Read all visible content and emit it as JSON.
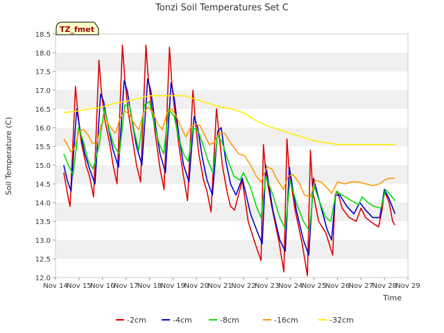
{
  "chart_data": {
    "type": "line",
    "title": "Tonzi Soil Temperatures Set C",
    "xlabel": "Time",
    "ylabel": "Soil Temperature (C)",
    "badge": "TZ_fmet",
    "xlim": [
      14,
      29
    ],
    "ylim": [
      12.0,
      18.5
    ],
    "x_ticks": [
      14,
      15,
      16,
      17,
      18,
      19,
      20,
      21,
      22,
      23,
      24,
      25,
      26,
      27,
      28,
      29
    ],
    "x_tick_labels": [
      "Nov 14",
      "Nov 15",
      "Nov 16",
      "Nov 17",
      "Nov 18",
      "Nov 19",
      "Nov 20",
      "Nov 21",
      "Nov 22",
      "Nov 23",
      "Nov 24",
      "Nov 25",
      "Nov 26",
      "Nov 27",
      "Nov 28",
      "Nov 29"
    ],
    "y_ticks": [
      12.0,
      12.5,
      13.0,
      13.5,
      14.0,
      14.5,
      15.0,
      15.5,
      16.0,
      16.5,
      17.0,
      17.5,
      18.0,
      18.5
    ],
    "y_tick_labels": [
      "12.0",
      "12.5",
      "13.0",
      "13.5",
      "14.0",
      "14.5",
      "15.0",
      "15.5",
      "16.0",
      "16.5",
      "17.0",
      "17.5",
      "18.0",
      "18.5"
    ],
    "grid": "horizontal bands",
    "legend_position": "bottom",
    "series": [
      {
        "name": "-2cm",
        "color": "#dd0000",
        "x": [
          14.35,
          14.55,
          14.62,
          14.85,
          14.95,
          15.1,
          15.3,
          15.45,
          15.62,
          15.85,
          15.95,
          16.1,
          16.3,
          16.45,
          16.62,
          16.85,
          16.95,
          17.1,
          17.3,
          17.45,
          17.62,
          17.85,
          17.95,
          18.1,
          18.3,
          18.45,
          18.62,
          18.85,
          18.95,
          19.1,
          19.3,
          19.45,
          19.62,
          19.85,
          19.95,
          20.1,
          20.3,
          20.45,
          20.62,
          20.85,
          20.95,
          21.1,
          21.3,
          21.45,
          21.62,
          21.85,
          21.95,
          22.2,
          22.5,
          22.75,
          22.85,
          22.95,
          23.2,
          23.5,
          23.72,
          23.85,
          23.95,
          24.2,
          24.5,
          24.72,
          24.85,
          24.95,
          25.2,
          25.5,
          25.8,
          25.9,
          26.0,
          26.2,
          26.5,
          26.8,
          27.0,
          27.2,
          27.5,
          27.75,
          27.9,
          28.0,
          28.2,
          28.35,
          28.45
        ],
        "values": [
          14.8,
          14.1,
          13.9,
          17.1,
          16.4,
          15.6,
          15.0,
          14.7,
          14.15,
          17.8,
          17.0,
          16.2,
          15.6,
          15.0,
          14.5,
          18.2,
          17.3,
          16.4,
          15.6,
          15.0,
          14.55,
          18.2,
          17.3,
          16.5,
          15.6,
          14.9,
          14.35,
          18.15,
          17.2,
          16.3,
          15.3,
          14.7,
          14.05,
          17.0,
          16.2,
          15.3,
          14.6,
          14.3,
          13.75,
          16.5,
          15.9,
          15.0,
          14.3,
          13.9,
          13.8,
          14.35,
          14.6,
          13.5,
          12.9,
          12.45,
          15.55,
          14.8,
          13.9,
          13.0,
          12.15,
          15.7,
          14.8,
          13.8,
          12.9,
          12.05,
          15.4,
          14.3,
          13.5,
          13.2,
          12.6,
          14.2,
          14.3,
          13.85,
          13.6,
          13.5,
          13.85,
          13.6,
          13.45,
          13.35,
          13.8,
          14.3,
          14.0,
          13.5,
          13.4
        ]
      },
      {
        "name": "-4cm",
        "color": "#0000cc",
        "x": [
          14.35,
          14.5,
          14.66,
          14.9,
          15.05,
          15.25,
          15.45,
          15.68,
          15.92,
          16.05,
          16.25,
          16.45,
          16.68,
          16.92,
          17.05,
          17.25,
          17.45,
          17.68,
          17.92,
          18.05,
          18.25,
          18.45,
          18.68,
          18.92,
          19.05,
          19.25,
          19.45,
          19.68,
          19.9,
          20.05,
          20.25,
          20.45,
          20.68,
          20.9,
          21.05,
          21.25,
          21.45,
          21.68,
          21.95,
          22.3,
          22.6,
          22.8,
          22.95,
          23.25,
          23.55,
          23.78,
          23.95,
          24.25,
          24.55,
          24.78,
          24.98,
          25.25,
          25.55,
          25.75,
          25.92,
          26.1,
          26.4,
          26.7,
          26.95,
          27.2,
          27.5,
          27.8,
          28.0,
          28.2,
          28.45
        ],
        "values": [
          15.0,
          14.6,
          14.3,
          16.5,
          15.9,
          15.3,
          14.9,
          14.5,
          16.9,
          16.7,
          16.0,
          15.4,
          14.95,
          17.25,
          17.0,
          16.2,
          15.5,
          15.0,
          17.3,
          17.0,
          16.1,
          15.3,
          14.8,
          17.2,
          16.8,
          15.8,
          15.0,
          14.55,
          16.3,
          16.0,
          15.2,
          14.6,
          14.2,
          15.9,
          16.0,
          15.1,
          14.5,
          14.2,
          14.65,
          13.7,
          13.2,
          12.9,
          15.0,
          13.8,
          13.0,
          12.7,
          14.95,
          13.8,
          13.0,
          12.6,
          14.65,
          14.0,
          13.3,
          13.0,
          14.2,
          14.2,
          13.9,
          13.7,
          14.0,
          13.8,
          13.6,
          13.6,
          14.35,
          14.1,
          13.7
        ]
      },
      {
        "name": "-8cm",
        "color": "#00dd00",
        "x": [
          14.35,
          14.55,
          14.75,
          14.98,
          15.2,
          15.4,
          15.6,
          15.85,
          16.08,
          16.3,
          16.5,
          16.72,
          16.95,
          17.15,
          17.35,
          17.55,
          17.78,
          18.0,
          18.2,
          18.4,
          18.6,
          18.82,
          19.05,
          19.25,
          19.45,
          19.65,
          19.85,
          20.08,
          20.3,
          20.5,
          20.7,
          20.9,
          21.1,
          21.35,
          21.6,
          21.85,
          22.0,
          22.3,
          22.55,
          22.75,
          22.95,
          23.25,
          23.55,
          23.78,
          23.98,
          24.25,
          24.55,
          24.8,
          25.0,
          25.25,
          25.5,
          25.72,
          25.95,
          26.2,
          26.6,
          26.9,
          27.05,
          27.3,
          27.55,
          27.85,
          28.05,
          28.25,
          28.45
        ],
        "values": [
          15.3,
          15.0,
          14.75,
          16.0,
          15.6,
          15.1,
          14.9,
          15.5,
          16.5,
          15.9,
          15.5,
          15.3,
          16.6,
          16.6,
          15.9,
          15.4,
          16.6,
          16.7,
          16.1,
          15.6,
          15.3,
          16.5,
          16.3,
          15.7,
          15.3,
          15.1,
          16.0,
          15.9,
          15.5,
          15.1,
          14.8,
          15.8,
          15.6,
          15.1,
          14.7,
          14.6,
          14.8,
          14.4,
          13.9,
          13.6,
          14.7,
          14.2,
          13.6,
          13.3,
          14.6,
          14.0,
          13.5,
          13.25,
          14.45,
          14.0,
          13.6,
          13.5,
          14.3,
          14.2,
          14.05,
          13.95,
          14.15,
          14.0,
          13.9,
          13.85,
          14.35,
          14.2,
          14.05
        ]
      },
      {
        "name": "-16cm",
        "color": "#ff9900",
        "x": [
          14.35,
          14.5,
          14.65,
          14.8,
          15.0,
          15.2,
          15.4,
          15.55,
          15.75,
          15.95,
          16.15,
          16.35,
          16.55,
          16.75,
          16.95,
          17.15,
          17.35,
          17.55,
          17.75,
          17.95,
          18.15,
          18.35,
          18.55,
          18.75,
          18.95,
          19.15,
          19.35,
          19.55,
          19.75,
          19.95,
          20.15,
          20.35,
          20.55,
          20.75,
          20.95,
          21.2,
          21.5,
          21.8,
          22.05,
          22.3,
          22.55,
          22.75,
          23.0,
          23.2,
          23.45,
          23.7,
          23.9,
          24.1,
          24.35,
          24.6,
          24.85,
          25.05,
          25.3,
          25.55,
          25.75,
          26.0,
          26.3,
          26.6,
          26.9,
          27.2,
          27.5,
          27.8,
          28.0,
          28.2,
          28.45
        ],
        "values": [
          15.7,
          15.55,
          15.35,
          15.45,
          15.9,
          15.95,
          15.8,
          15.6,
          15.55,
          16.1,
          16.2,
          16.0,
          15.85,
          16.25,
          16.45,
          16.35,
          16.1,
          15.95,
          16.4,
          16.55,
          16.4,
          16.1,
          15.95,
          16.4,
          16.5,
          16.3,
          16.0,
          15.75,
          16.0,
          16.1,
          16.05,
          15.8,
          15.55,
          15.6,
          15.85,
          15.85,
          15.55,
          15.3,
          15.25,
          15.0,
          14.7,
          14.55,
          14.95,
          14.9,
          14.6,
          14.35,
          14.7,
          14.75,
          14.55,
          14.2,
          14.15,
          14.6,
          14.55,
          14.4,
          14.25,
          14.55,
          14.5,
          14.55,
          14.55,
          14.5,
          14.45,
          14.5,
          14.6,
          14.65,
          14.65
        ]
      },
      {
        "name": "-32cm",
        "color": "#ffee00",
        "x": [
          14.35,
          15.0,
          15.5,
          16.0,
          16.5,
          17.0,
          17.5,
          18.0,
          18.5,
          19.0,
          19.5,
          20.0,
          20.5,
          21.0,
          21.5,
          22.0,
          22.5,
          23.0,
          23.5,
          24.0,
          24.5,
          25.0,
          25.5,
          26.0,
          26.5,
          27.0,
          27.5,
          28.0,
          28.45
        ],
        "values": [
          16.4,
          16.45,
          16.5,
          16.55,
          16.65,
          16.7,
          16.78,
          16.85,
          16.85,
          16.85,
          16.85,
          16.75,
          16.65,
          16.55,
          16.5,
          16.4,
          16.2,
          16.05,
          15.95,
          15.85,
          15.75,
          15.65,
          15.6,
          15.55,
          15.55,
          15.55,
          15.55,
          15.55,
          15.55
        ]
      }
    ]
  }
}
